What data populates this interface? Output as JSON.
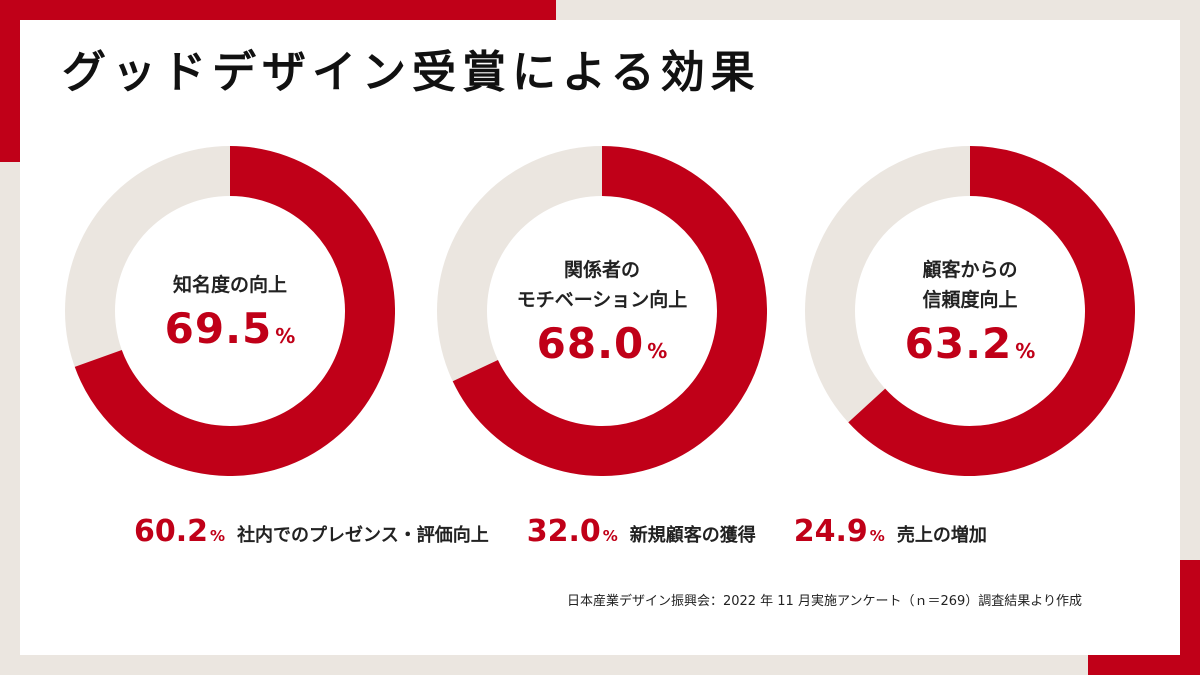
{
  "colors": {
    "accent": "#c00018",
    "track": "#ebe6e0",
    "background": "#ffffff"
  },
  "title": "グッドデザイン受賞による効果",
  "chart_data": {
    "type": "pie",
    "variant": "donut",
    "title": "グッドデザイン受賞による効果",
    "unit": "%",
    "donuts": [
      {
        "label": "知名度の向上",
        "value": 69.5,
        "value_text": "69.5"
      },
      {
        "label": "関係者の\nモチベーション向上",
        "value": 68.0,
        "value_text": "68.0"
      },
      {
        "label": "顧客からの\n信頼度向上",
        "value": 63.2,
        "value_text": "63.2"
      }
    ],
    "other_items": [
      {
        "label": "社内でのプレゼンス・評価向上",
        "value": 60.2,
        "value_text": "60.2"
      },
      {
        "label": "新規顧客の獲得",
        "value": 32.0,
        "value_text": "32.0"
      },
      {
        "label": "売上の増加",
        "value": 24.9,
        "value_text": "24.9"
      }
    ],
    "source": "日本産業デザイン振興会：2022 年 11 月実施アンケート（ｎ＝269）調査結果より作成"
  }
}
